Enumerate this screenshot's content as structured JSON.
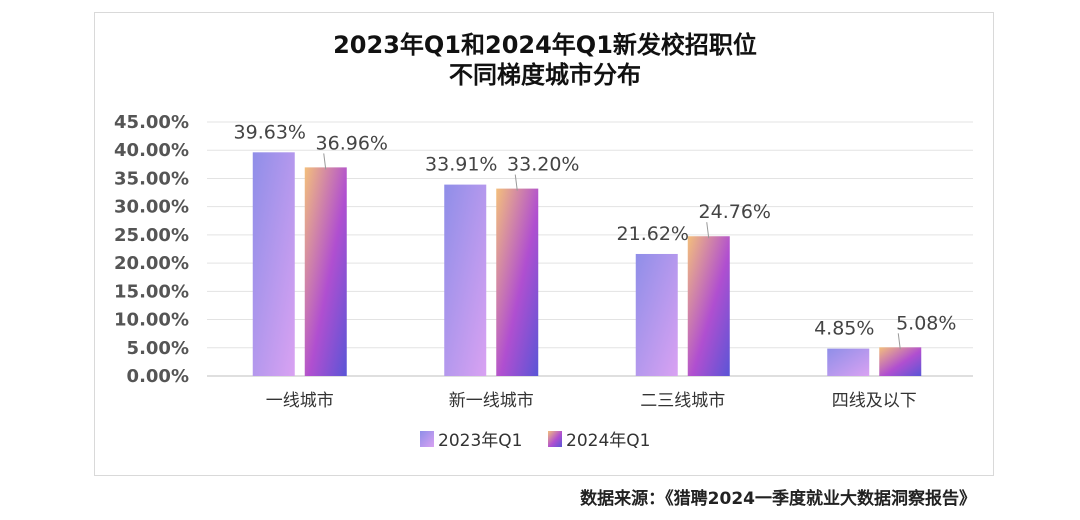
{
  "chart_data": {
    "type": "bar",
    "title_lines": [
      "2023年Q1和2024年Q1新发校招职位",
      "不同梯度城市分布"
    ],
    "categories": [
      "一线城市",
      "新一线城市",
      "二三线城市",
      "四线及以下"
    ],
    "series": [
      {
        "name": "2023年Q1",
        "values": [
          39.63,
          33.91,
          21.62,
          4.85
        ],
        "labels": [
          "39.63%",
          "33.91%",
          "21.62%",
          "4.85%"
        ]
      },
      {
        "name": "2024年Q1",
        "values": [
          36.96,
          33.2,
          24.76,
          5.08
        ],
        "labels": [
          "36.96%",
          "33.20%",
          "24.76%",
          "5.08%"
        ]
      }
    ],
    "y_ticks": [
      "45.00%",
      "40.00%",
      "35.00%",
      "30.00%",
      "25.00%",
      "20.00%",
      "15.00%",
      "10.00%",
      "5.00%",
      "0.00%"
    ],
    "ylim": [
      0,
      45
    ],
    "grid": true,
    "legend_position": "bottom",
    "colors": {
      "series1_top": "#8f8ee8",
      "series1_bottom": "#d9a2f2",
      "series2_top": "#f3bf7c",
      "series2_mid": "#b04fd0",
      "series2_bottom": "#5a55d6"
    }
  },
  "source_text": "数据来源：《猎聘2024一季度就业大数据洞察报告》"
}
